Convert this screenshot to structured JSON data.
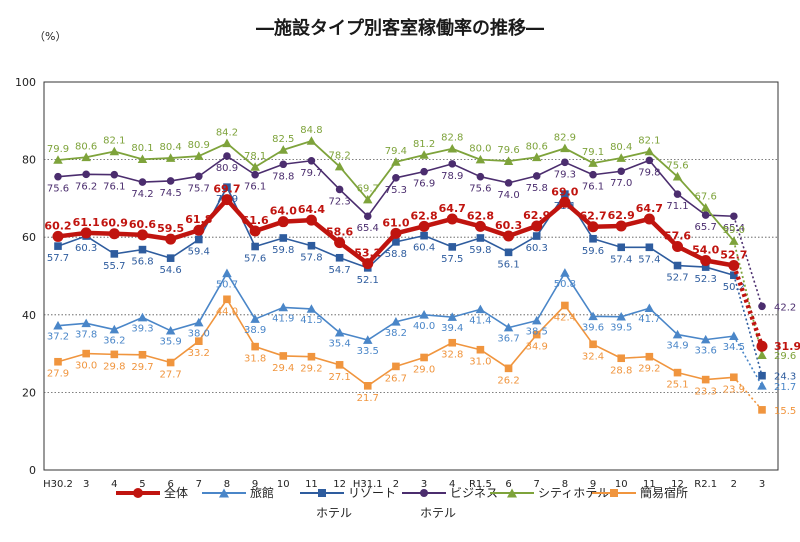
{
  "title": "―施設タイプ別客室稼働率の推移―",
  "chart_data": {
    "type": "line",
    "title": "―施設タイプ別客室稼働率の推移―",
    "ylabel": "（%）",
    "xlabel": "",
    "ylim": [
      0,
      100
    ],
    "yticks": [
      0,
      20,
      40,
      60,
      80,
      100
    ],
    "grid": "horizontal dotted",
    "legend": "bottom",
    "categories": [
      "H30.2",
      "3",
      "4",
      "5",
      "6",
      "7",
      "8",
      "9",
      "10",
      "11",
      "12",
      "H31.1",
      "2",
      "3",
      "4",
      "R1.5",
      "6",
      "7",
      "8",
      "9",
      "10",
      "11",
      "12",
      "R2.1",
      "2",
      "3"
    ],
    "series": [
      {
        "name": "全体",
        "color": "#c0140f",
        "marker": "circle",
        "values": [
          60.2,
          61.1,
          60.9,
          60.6,
          59.5,
          61.8,
          69.7,
          61.6,
          64.0,
          64.4,
          58.6,
          53.2,
          61.0,
          62.8,
          64.7,
          62.8,
          60.3,
          62.9,
          69.0,
          62.7,
          62.9,
          64.7,
          57.6,
          54.0,
          52.7,
          31.9
        ]
      },
      {
        "name": "旅館",
        "color": "#4a86c8",
        "marker": "triangle",
        "values": [
          37.2,
          37.8,
          36.2,
          39.3,
          35.9,
          38.0,
          50.7,
          38.9,
          41.9,
          41.5,
          35.4,
          33.5,
          38.2,
          40.0,
          39.4,
          41.4,
          36.7,
          38.5,
          50.8,
          39.6,
          39.5,
          41.7,
          34.9,
          33.6,
          34.5,
          21.7
        ]
      },
      {
        "name": "リゾートホテル",
        "color": "#2e5c9e",
        "marker": "square",
        "values": [
          57.7,
          60.3,
          55.7,
          56.8,
          54.6,
          59.4,
          72.9,
          57.6,
          59.8,
          57.8,
          54.7,
          52.1,
          58.8,
          60.4,
          57.5,
          59.8,
          56.1,
          60.3,
          71.1,
          59.6,
          57.4,
          57.4,
          52.7,
          52.3,
          50.2,
          24.3
        ]
      },
      {
        "name": "ビジネスホテル",
        "color": "#4b2d6e",
        "marker": "circle",
        "values": [
          75.6,
          76.2,
          76.1,
          74.2,
          74.5,
          75.7,
          80.9,
          76.1,
          78.8,
          79.7,
          72.3,
          65.4,
          75.3,
          76.9,
          78.9,
          75.6,
          74.0,
          75.8,
          79.3,
          76.1,
          77.0,
          79.8,
          71.1,
          65.7,
          65.4,
          42.2
        ]
      },
      {
        "name": "シティホテル",
        "color": "#7ea33b",
        "marker": "triangle",
        "values": [
          79.9,
          80.6,
          82.1,
          80.1,
          80.4,
          80.9,
          84.2,
          78.1,
          82.5,
          84.8,
          78.2,
          69.7,
          79.4,
          81.2,
          82.8,
          80.0,
          79.6,
          80.6,
          82.9,
          79.1,
          80.4,
          82.1,
          75.6,
          67.6,
          59.0,
          29.6
        ]
      },
      {
        "name": "簡易宿所",
        "color": "#f0953e",
        "marker": "square",
        "values": [
          27.9,
          30.0,
          29.8,
          29.7,
          27.7,
          33.2,
          44.0,
          31.8,
          29.4,
          29.2,
          27.1,
          21.7,
          26.7,
          29.0,
          32.8,
          31.0,
          26.2,
          34.9,
          42.4,
          32.4,
          28.8,
          29.2,
          25.1,
          23.3,
          23.9,
          15.5
        ]
      }
    ]
  },
  "legend_rows": {
    "row1": [
      "全体",
      "旅館",
      "リゾート",
      "ビジネス",
      "シティホテル",
      "簡易宿所"
    ],
    "row2_resort": "ホテル",
    "row2_business": "ホテル"
  }
}
